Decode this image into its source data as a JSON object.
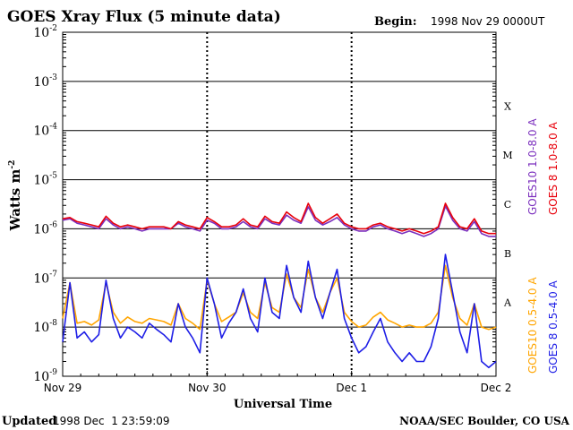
{
  "chart_data": {
    "type": "line",
    "title": "GOES Xray Flux (5 minute data)",
    "begin_label": "Begin:",
    "begin_value": "1998 Nov 29 0000UT",
    "xlabel": "Universal Time",
    "ylabel": "Watts m",
    "ylabel_sup": "-2",
    "x_ticks": [
      "Nov 29",
      "Nov 30",
      "Dec 1",
      "Dec 2"
    ],
    "x_range_days": [
      0,
      3
    ],
    "y_scale": "log",
    "ylim": [
      1e-09,
      0.01
    ],
    "y_ticks": [
      {
        "base": "10",
        "exp": "-2"
      },
      {
        "base": "10",
        "exp": "-3"
      },
      {
        "base": "10",
        "exp": "-4"
      },
      {
        "base": "10",
        "exp": "-5"
      },
      {
        "base": "10",
        "exp": "-6"
      },
      {
        "base": "10",
        "exp": "-7"
      },
      {
        "base": "10",
        "exp": "-8"
      },
      {
        "base": "10",
        "exp": "-9"
      }
    ],
    "flare_classes": [
      "X",
      "M",
      "C",
      "B",
      "A"
    ],
    "grid": true,
    "series": [
      {
        "name": "GOES10 1.0-8.0 A",
        "color": "#7B2FBE",
        "band": "long",
        "x": [
          0.0,
          0.05,
          0.1,
          0.15,
          0.2,
          0.25,
          0.3,
          0.35,
          0.4,
          0.45,
          0.5,
          0.55,
          0.6,
          0.65,
          0.7,
          0.75,
          0.8,
          0.85,
          0.9,
          0.95,
          1.0,
          1.05,
          1.1,
          1.15,
          1.2,
          1.25,
          1.3,
          1.35,
          1.4,
          1.45,
          1.5,
          1.55,
          1.6,
          1.65,
          1.7,
          1.75,
          1.8,
          1.85,
          1.9,
          1.95,
          2.0,
          2.05,
          2.1,
          2.15,
          2.2,
          2.25,
          2.3,
          2.35,
          2.4,
          2.45,
          2.5,
          2.55,
          2.6,
          2.65,
          2.7,
          2.75,
          2.8,
          2.85,
          2.9,
          2.95,
          3.0
        ],
        "y": [
          1.5e-06,
          1.6e-06,
          1.3e-06,
          1.2e-06,
          1.1e-06,
          1e-06,
          1.6e-06,
          1.2e-06,
          1e-06,
          1.1e-06,
          1e-06,
          9e-07,
          1e-06,
          1e-06,
          1e-06,
          1e-06,
          1.3e-06,
          1.1e-06,
          1e-06,
          9e-07,
          1.5e-06,
          1.3e-06,
          1e-06,
          1e-06,
          1.1e-06,
          1.4e-06,
          1.1e-06,
          1e-06,
          1.6e-06,
          1.3e-06,
          1.2e-06,
          1.9e-06,
          1.5e-06,
          1.3e-06,
          2.8e-06,
          1.5e-06,
          1.2e-06,
          1.4e-06,
          1.7e-06,
          1.2e-06,
          1e-06,
          9e-07,
          9e-07,
          1.1e-06,
          1.2e-06,
          1e-06,
          9e-07,
          8e-07,
          9e-07,
          8e-07,
          7e-07,
          8e-07,
          1e-06,
          2.9e-06,
          1.5e-06,
          1e-06,
          9e-07,
          1.4e-06,
          8e-07,
          7e-07,
          7e-07
        ]
      },
      {
        "name": "GOES 8 1.0-8.0 A",
        "color": "#E8000B",
        "band": "long",
        "x": [
          0.0,
          0.05,
          0.1,
          0.15,
          0.2,
          0.25,
          0.3,
          0.35,
          0.4,
          0.45,
          0.5,
          0.55,
          0.6,
          0.65,
          0.7,
          0.75,
          0.8,
          0.85,
          0.9,
          0.95,
          1.0,
          1.05,
          1.1,
          1.15,
          1.2,
          1.25,
          1.3,
          1.35,
          1.4,
          1.45,
          1.5,
          1.55,
          1.6,
          1.65,
          1.7,
          1.75,
          1.8,
          1.85,
          1.9,
          1.95,
          2.0,
          2.05,
          2.1,
          2.15,
          2.2,
          2.25,
          2.3,
          2.35,
          2.4,
          2.45,
          2.5,
          2.55,
          2.6,
          2.65,
          2.7,
          2.75,
          2.8,
          2.85,
          2.9,
          2.95,
          3.0
        ],
        "y": [
          1.6e-06,
          1.7e-06,
          1.4e-06,
          1.3e-06,
          1.2e-06,
          1.1e-06,
          1.8e-06,
          1.3e-06,
          1.1e-06,
          1.2e-06,
          1.1e-06,
          1e-06,
          1.1e-06,
          1.1e-06,
          1.1e-06,
          1e-06,
          1.4e-06,
          1.2e-06,
          1.1e-06,
          1e-06,
          1.7e-06,
          1.4e-06,
          1.1e-06,
          1.1e-06,
          1.2e-06,
          1.6e-06,
          1.2e-06,
          1.1e-06,
          1.8e-06,
          1.4e-06,
          1.3e-06,
          2.2e-06,
          1.7e-06,
          1.4e-06,
          3.3e-06,
          1.7e-06,
          1.3e-06,
          1.6e-06,
          2e-06,
          1.3e-06,
          1.1e-06,
          1e-06,
          1e-06,
          1.2e-06,
          1.3e-06,
          1.1e-06,
          1e-06,
          9e-07,
          1e-06,
          9e-07,
          8e-07,
          9e-07,
          1.1e-06,
          3.3e-06,
          1.7e-06,
          1.1e-06,
          1e-06,
          1.6e-06,
          9e-07,
          8e-07,
          8e-07
        ]
      },
      {
        "name": "GOES10 0.5-4.0 A",
        "color": "#FFA500",
        "band": "short",
        "x": [
          0.0,
          0.05,
          0.1,
          0.15,
          0.2,
          0.25,
          0.3,
          0.35,
          0.4,
          0.45,
          0.5,
          0.55,
          0.6,
          0.65,
          0.7,
          0.75,
          0.8,
          0.85,
          0.9,
          0.95,
          1.0,
          1.05,
          1.1,
          1.15,
          1.2,
          1.25,
          1.3,
          1.35,
          1.4,
          1.45,
          1.5,
          1.55,
          1.6,
          1.65,
          1.7,
          1.75,
          1.8,
          1.85,
          1.9,
          1.95,
          2.0,
          2.05,
          2.1,
          2.15,
          2.2,
          2.25,
          2.3,
          2.35,
          2.4,
          2.45,
          2.5,
          2.55,
          2.6,
          2.65,
          2.7,
          2.75,
          2.8,
          2.85,
          2.9,
          2.95,
          3.0
        ],
        "y": [
          1.5e-08,
          8e-08,
          1.2e-08,
          1.3e-08,
          1.1e-08,
          1.4e-08,
          8e-08,
          2e-08,
          1.2e-08,
          1.6e-08,
          1.3e-08,
          1.2e-08,
          1.5e-08,
          1.4e-08,
          1.3e-08,
          1.1e-08,
          3e-08,
          1.5e-08,
          1.2e-08,
          9e-09,
          9e-08,
          3e-08,
          1.3e-08,
          1.6e-08,
          2e-08,
          5e-08,
          2e-08,
          1.5e-08,
          8e-08,
          2.5e-08,
          2e-08,
          1.2e-07,
          4e-08,
          2.5e-08,
          1.5e-07,
          4e-08,
          2e-08,
          5e-08,
          1e-07,
          2e-08,
          1.3e-08,
          1e-08,
          1.1e-08,
          1.6e-08,
          2e-08,
          1.4e-08,
          1.2e-08,
          1e-08,
          1.1e-08,
          1e-08,
          1e-08,
          1.2e-08,
          2e-08,
          1.8e-07,
          4e-08,
          1.5e-08,
          1.1e-08,
          3e-08,
          1e-08,
          9e-09,
          1e-08
        ]
      },
      {
        "name": "GOES 8 0.5-4.0 A",
        "color": "#1E1EE6",
        "band": "short",
        "x": [
          0.0,
          0.05,
          0.1,
          0.15,
          0.2,
          0.25,
          0.3,
          0.35,
          0.4,
          0.45,
          0.5,
          0.55,
          0.6,
          0.65,
          0.7,
          0.75,
          0.8,
          0.85,
          0.9,
          0.95,
          1.0,
          1.05,
          1.1,
          1.15,
          1.2,
          1.25,
          1.3,
          1.35,
          1.4,
          1.45,
          1.5,
          1.55,
          1.6,
          1.65,
          1.7,
          1.75,
          1.8,
          1.85,
          1.9,
          1.95,
          2.0,
          2.05,
          2.1,
          2.15,
          2.2,
          2.25,
          2.3,
          2.35,
          2.4,
          2.45,
          2.5,
          2.55,
          2.6,
          2.65,
          2.7,
          2.75,
          2.8,
          2.85,
          2.9,
          2.95,
          3.0
        ],
        "y": [
          5e-09,
          8e-08,
          6e-09,
          8e-09,
          5e-09,
          7e-09,
          9e-08,
          1.5e-08,
          6e-09,
          1e-08,
          8e-09,
          6e-09,
          1.2e-08,
          9e-09,
          7e-09,
          5e-09,
          3e-08,
          1e-08,
          6e-09,
          3e-09,
          1e-07,
          3e-08,
          6e-09,
          1.2e-08,
          2e-08,
          6e-08,
          1.5e-08,
          8e-09,
          1e-07,
          2e-08,
          1.5e-08,
          1.8e-07,
          4e-08,
          2e-08,
          2.2e-07,
          4e-08,
          1.5e-08,
          5e-08,
          1.5e-07,
          1.5e-08,
          6e-09,
          3e-09,
          4e-09,
          8e-09,
          1.5e-08,
          5e-09,
          3e-09,
          2e-09,
          3e-09,
          2e-09,
          2e-09,
          4e-09,
          1.5e-08,
          3e-07,
          5e-08,
          8e-09,
          3e-09,
          3e-08,
          2e-09,
          1.5e-09,
          2e-09
        ]
      }
    ]
  },
  "footer": {
    "updated_label": "Updated",
    "updated_value": "1998 Dec  1 23:59:09",
    "credit": "NOAA/SEC Boulder, CO USA"
  }
}
